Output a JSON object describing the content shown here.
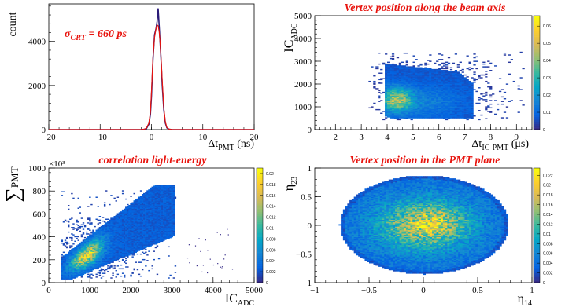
{
  "colors": {
    "hist_red": "#e8140e",
    "hist_dark": "#2a1b78",
    "title_red": "#e8140e",
    "palette": [
      "#352a87",
      "#0363e1",
      "#1485d4",
      "#06a7c6",
      "#38b99e",
      "#92bf73",
      "#d9ba56",
      "#fcce2e",
      "#f9fb0e"
    ]
  },
  "chart_data": [
    {
      "id": "tl",
      "type": "line",
      "title": "",
      "annotation_main": "σ",
      "annotation_sub": "CRT",
      "annotation_rest": " = 660 ps",
      "xlabel_main": "Δt",
      "xlabel_sub": "PMT",
      "xlabel_rest": " (ns)",
      "ylabel": "count",
      "xlim": [
        -20,
        20
      ],
      "ylim": [
        0,
        5700
      ],
      "xticks": [
        -20,
        -10,
        0,
        10,
        20
      ],
      "yticks": [
        0,
        2000,
        4000
      ],
      "series": [
        {
          "x": [
            -20,
            -5,
            -2,
            -1.5,
            -1,
            -0.5,
            -0.2,
            0,
            0.3,
            0.6,
            0.9,
            1.1,
            1.3,
            1.5,
            1.7,
            1.9,
            2.1,
            2.4,
            2.7,
            3.0,
            3.4,
            4,
            6,
            20
          ],
          "values": [
            0,
            0,
            0,
            10,
            40,
            250,
            700,
            1500,
            3200,
            4300,
            4600,
            4900,
            5500,
            4700,
            3900,
            3000,
            2000,
            900,
            300,
            80,
            20,
            0,
            0,
            0
          ]
        },
        {
          "x": [
            -20,
            -5,
            -2,
            -1.5,
            -1,
            -0.5,
            -0.2,
            0,
            0.3,
            0.6,
            0.9,
            1.1,
            1.3,
            1.5,
            1.7,
            1.9,
            2.1,
            2.4,
            2.7,
            3.0,
            3.4,
            4,
            6,
            20
          ],
          "values": [
            0,
            0,
            0,
            15,
            60,
            300,
            800,
            1700,
            3300,
            4200,
            4600,
            4750,
            4700,
            4450,
            3900,
            3100,
            2200,
            1000,
            350,
            100,
            25,
            0,
            0,
            0
          ]
        }
      ]
    },
    {
      "id": "tr",
      "type": "heatmap",
      "title": "Vertex position along the beam axis",
      "xlabel_main": "Δt",
      "xlabel_sub": "IC-PMT",
      "xlabel_rest": " (μs)",
      "ylabel_main": "IC",
      "ylabel_sub": "ADC",
      "xlim": [
        1.2,
        9.6
      ],
      "ylim": [
        0,
        5000
      ],
      "xticks": [
        2,
        3,
        4,
        5,
        6,
        7,
        8,
        9
      ],
      "yticks": [
        0,
        1000,
        2000,
        3000,
        4000,
        5000
      ],
      "zticks": [
        "0.01",
        "0.02",
        "0.03",
        "0.04",
        "0.05",
        "0.06"
      ],
      "zmax": 0.066
    },
    {
      "id": "bl",
      "type": "heatmap",
      "title": "correlation light-energy",
      "xlabel_main": "IC",
      "xlabel_sub": "ADC",
      "ylabel_main": "∑",
      "ylabel_sub": "PMT",
      "yexponent": "×10³",
      "xlim": [
        0,
        5000
      ],
      "ylim": [
        0,
        1000
      ],
      "xticks": [
        0,
        1000,
        2000,
        3000,
        4000,
        5000
      ],
      "yticks": [
        0,
        200,
        400,
        600,
        800,
        1000
      ],
      "zticks": [
        "0.002",
        "0.004",
        "0.006",
        "0.008",
        "0.01",
        "0.012",
        "0.014",
        "0.016",
        "0.018",
        "0.02"
      ],
      "zmax": 0.021
    },
    {
      "id": "br",
      "type": "heatmap",
      "title": "Vertex position in the PMT plane",
      "xlabel_main": "η",
      "xlabel_sub": "14",
      "ylabel_main": "η",
      "ylabel_sub": "23",
      "xlim": [
        -1,
        1
      ],
      "ylim": [
        -1,
        1
      ],
      "xticks": [
        -1,
        -0.5,
        0,
        0.5,
        1
      ],
      "yticks": [
        -1,
        -0.5,
        0,
        0.5,
        1
      ],
      "zticks": [
        "0.002",
        "0.004",
        "0.006",
        "0.008",
        "0.01",
        "0.012",
        "0.014",
        "0.016",
        "0.018",
        "0.02",
        "0.022"
      ],
      "zmax": 0.0235
    }
  ]
}
